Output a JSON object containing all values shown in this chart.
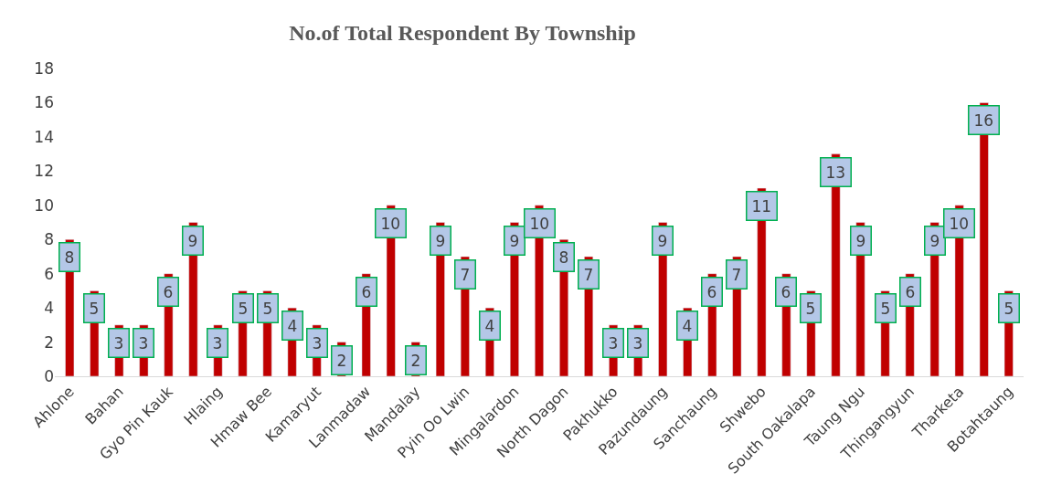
{
  "chart_data": {
    "type": "bar",
    "title": "No.of Total Respondent By Township",
    "categories": [
      "Ahlone",
      null,
      "Bahan",
      null,
      "Gyo Pin Kauk",
      null,
      "Hlaing",
      null,
      "Hmaw Bee",
      null,
      "Kamaryut",
      null,
      "Lanmadaw",
      null,
      "Mandalay",
      null,
      "Pyin Oo Lwin",
      null,
      "Mingalardon",
      null,
      "North Dagon",
      null,
      "Pakhukko",
      null,
      "Pazundaung",
      null,
      "Sanchaung",
      null,
      "Shwebo",
      null,
      "South Oakalapa",
      null,
      "Taung Ngu",
      null,
      "Thingangyun",
      null,
      "Tharketa",
      null,
      "Botahtaung"
    ],
    "values": [
      8,
      5,
      3,
      3,
      6,
      9,
      3,
      5,
      5,
      4,
      3,
      2,
      6,
      10,
      2,
      9,
      7,
      4,
      9,
      10,
      8,
      7,
      3,
      3,
      9,
      4,
      6,
      7,
      11,
      6,
      5,
      13,
      9,
      5,
      6,
      9,
      10,
      16,
      5
    ],
    "color": "#c00000",
    "ylim": [
      0,
      18
    ],
    "yticks": [
      0,
      2,
      4,
      6,
      8,
      10,
      12,
      14,
      16,
      18
    ],
    "data_labels": true,
    "legend": false
  }
}
